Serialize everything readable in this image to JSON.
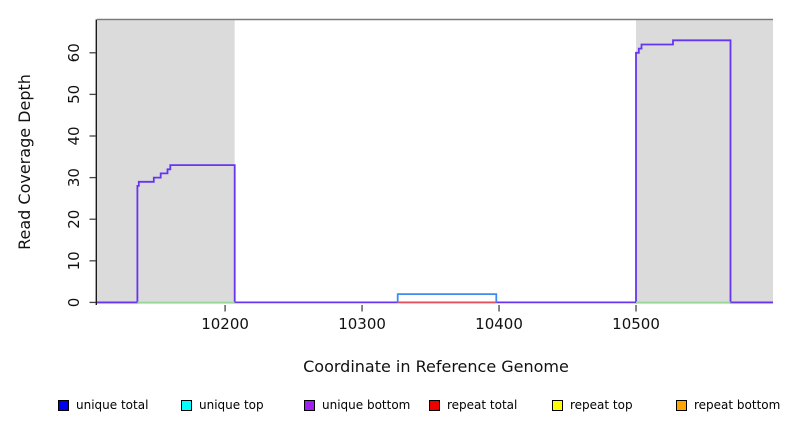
{
  "chart_data": {
    "type": "line",
    "title": "",
    "xlabel": "Coordinate in Reference Genome",
    "ylabel": "Read Coverage Depth",
    "xlim": [
      10106.5,
      10600
    ],
    "ylim": [
      -0.5,
      68
    ],
    "x_ticks": [
      10200,
      10300,
      10400,
      10500
    ],
    "y_ticks": [
      0,
      10,
      20,
      30,
      40,
      50,
      60
    ],
    "grid": false,
    "plot_background": "#ffffff",
    "border_top_color": "#7a7a7a",
    "axis_color": "#1a1a1a",
    "tick_color": "#444444",
    "shaded_regions": [
      {
        "label": "shaded-region-left",
        "x0": 10106.5,
        "x1": 10207,
        "color": "#DBDBDB"
      },
      {
        "label": "shaded-region-right",
        "x0": 10500,
        "x1": 10600,
        "color": "#DBDBDB"
      }
    ],
    "series": [
      {
        "name": "unique-coverage-blocks",
        "color": "#6735F0",
        "width": 1.8,
        "points": [
          [
            10106.5,
            0
          ],
          [
            10136,
            0
          ],
          [
            10136,
            28
          ],
          [
            10137,
            28
          ],
          [
            10137,
            29
          ],
          [
            10148,
            29
          ],
          [
            10148,
            30
          ],
          [
            10153,
            30
          ],
          [
            10153,
            31
          ],
          [
            10158,
            31
          ],
          [
            10158,
            32
          ],
          [
            10160,
            32
          ],
          [
            10160,
            33
          ],
          [
            10207,
            33
          ],
          [
            10207,
            0
          ],
          [
            10326,
            0
          ],
          [
            10398,
            0
          ],
          [
            10500,
            0
          ],
          [
            10500,
            60
          ],
          [
            10502,
            60
          ],
          [
            10502,
            61
          ],
          [
            10504,
            61
          ],
          [
            10504,
            62
          ],
          [
            10527,
            62
          ],
          [
            10527,
            63
          ],
          [
            10569,
            63
          ],
          [
            10569,
            0
          ],
          [
            10600,
            0
          ]
        ]
      },
      {
        "name": "repeat-total-zero-line",
        "color": "#E25260",
        "width": 1.5,
        "points": [
          [
            10326,
            0
          ],
          [
            10398,
            0
          ]
        ]
      },
      {
        "name": "zero-line-under-left-block",
        "color": "#9AD69A",
        "width": 1.5,
        "points": [
          [
            10136,
            0
          ],
          [
            10207,
            0
          ]
        ]
      },
      {
        "name": "zero-line-under-right-block",
        "color": "#9AD69A",
        "width": 1.5,
        "points": [
          [
            10500,
            0
          ],
          [
            10569,
            0
          ]
        ]
      },
      {
        "name": "unique-coverage-step",
        "color": "#3E8CF2",
        "width": 1.8,
        "points": [
          [
            10326,
            0
          ],
          [
            10326,
            2
          ],
          [
            10398,
            2
          ],
          [
            10398,
            0
          ]
        ]
      }
    ],
    "legend": {
      "position": "bottom",
      "entries": [
        {
          "label": "unique total",
          "color": "#0000EE"
        },
        {
          "label": "unique top",
          "color": "#00FFFF"
        },
        {
          "label": "unique bottom",
          "color": "#A020F0"
        },
        {
          "label": "repeat total",
          "color": "#EE0000"
        },
        {
          "label": "repeat top",
          "color": "#FFFF00"
        },
        {
          "label": "repeat bottom",
          "color": "#FFA500"
        }
      ]
    }
  }
}
